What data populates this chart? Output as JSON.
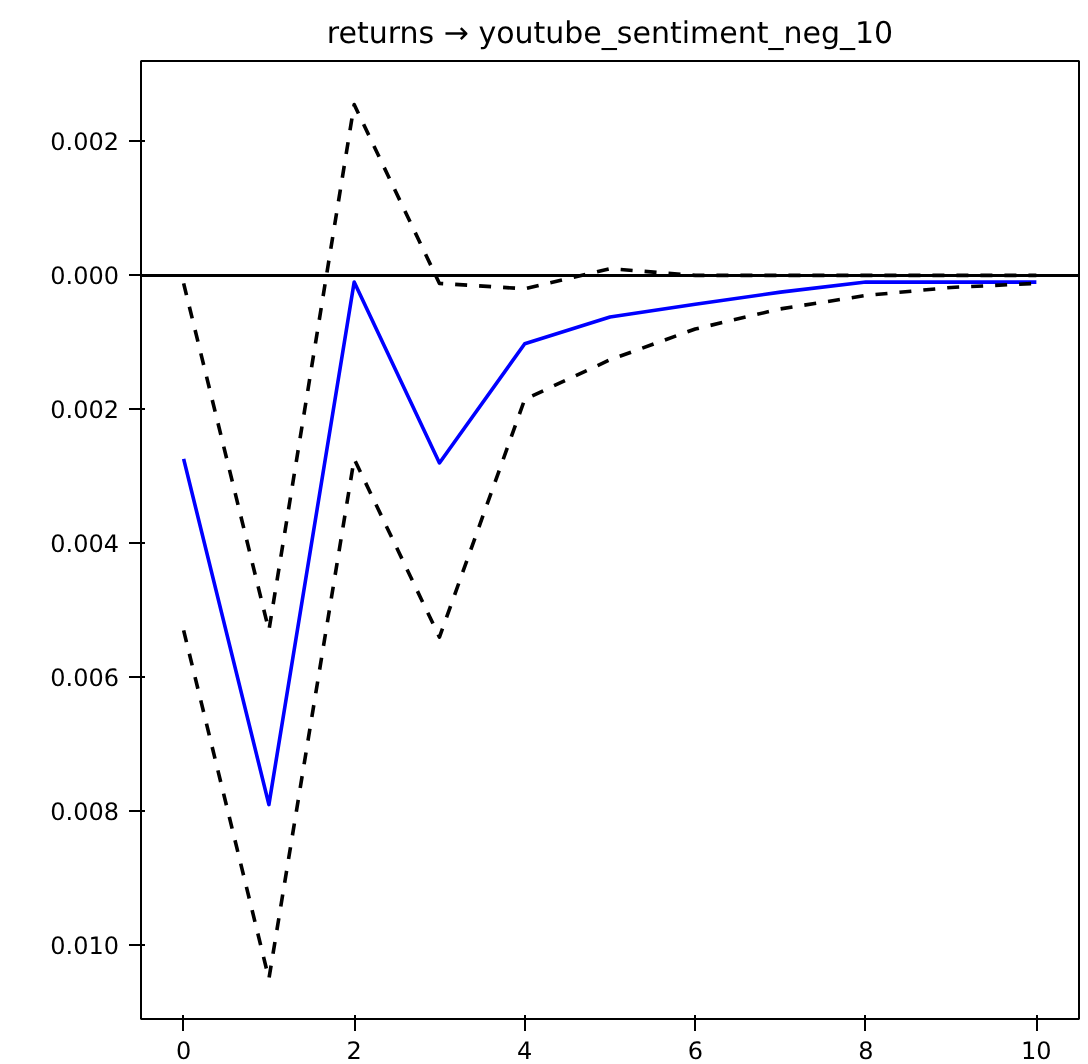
{
  "chart_data": {
    "type": "line",
    "title": "returns → youtube_sentiment_neg_10",
    "x": [
      0,
      1,
      2,
      3,
      4,
      5,
      6,
      7,
      8,
      9,
      10
    ],
    "series": [
      {
        "color": "#0000ff",
        "line_style": "solid",
        "values": [
          -0.00274,
          -0.0079,
          -0.0001,
          -0.0028,
          -0.00102,
          -0.00062,
          -0.00043,
          -0.00025,
          -0.0001,
          -0.0001,
          -0.0001
        ]
      },
      {
        "color": "#000000",
        "line_style": "dashed",
        "values": [
          -0.00012,
          -0.0053,
          0.00255,
          -0.00012,
          -0.0002,
          0.0001,
          0.0,
          0.0,
          0.0,
          0.0,
          0.0
        ]
      },
      {
        "color": "#000000",
        "line_style": "dashed",
        "values": [
          -0.0053,
          -0.0105,
          -0.00274,
          -0.0054,
          -0.00185,
          -0.00126,
          -0.0008,
          -0.0005,
          -0.0003,
          -0.00018,
          -0.00012
        ]
      }
    ],
    "xlim": [
      -0.5,
      10.5
    ],
    "xticks": [
      0,
      2,
      4,
      6,
      8,
      10
    ],
    "ylim": [
      -0.0111,
      0.0032
    ],
    "yticks": [
      {
        "value": 0.002,
        "label": "0.002"
      },
      {
        "value": 0.0,
        "label": "0.000"
      },
      {
        "value": -0.002,
        "label": "0.002"
      },
      {
        "value": -0.004,
        "label": "0.004"
      },
      {
        "value": -0.006,
        "label": "0.006"
      },
      {
        "value": -0.008,
        "label": "0.008"
      },
      {
        "value": -0.01,
        "label": "0.010"
      }
    ],
    "ref_lines": [
      {
        "axis": "y",
        "value": 0.0,
        "color": "#000000",
        "line_style": "solid"
      }
    ],
    "grid": false
  }
}
